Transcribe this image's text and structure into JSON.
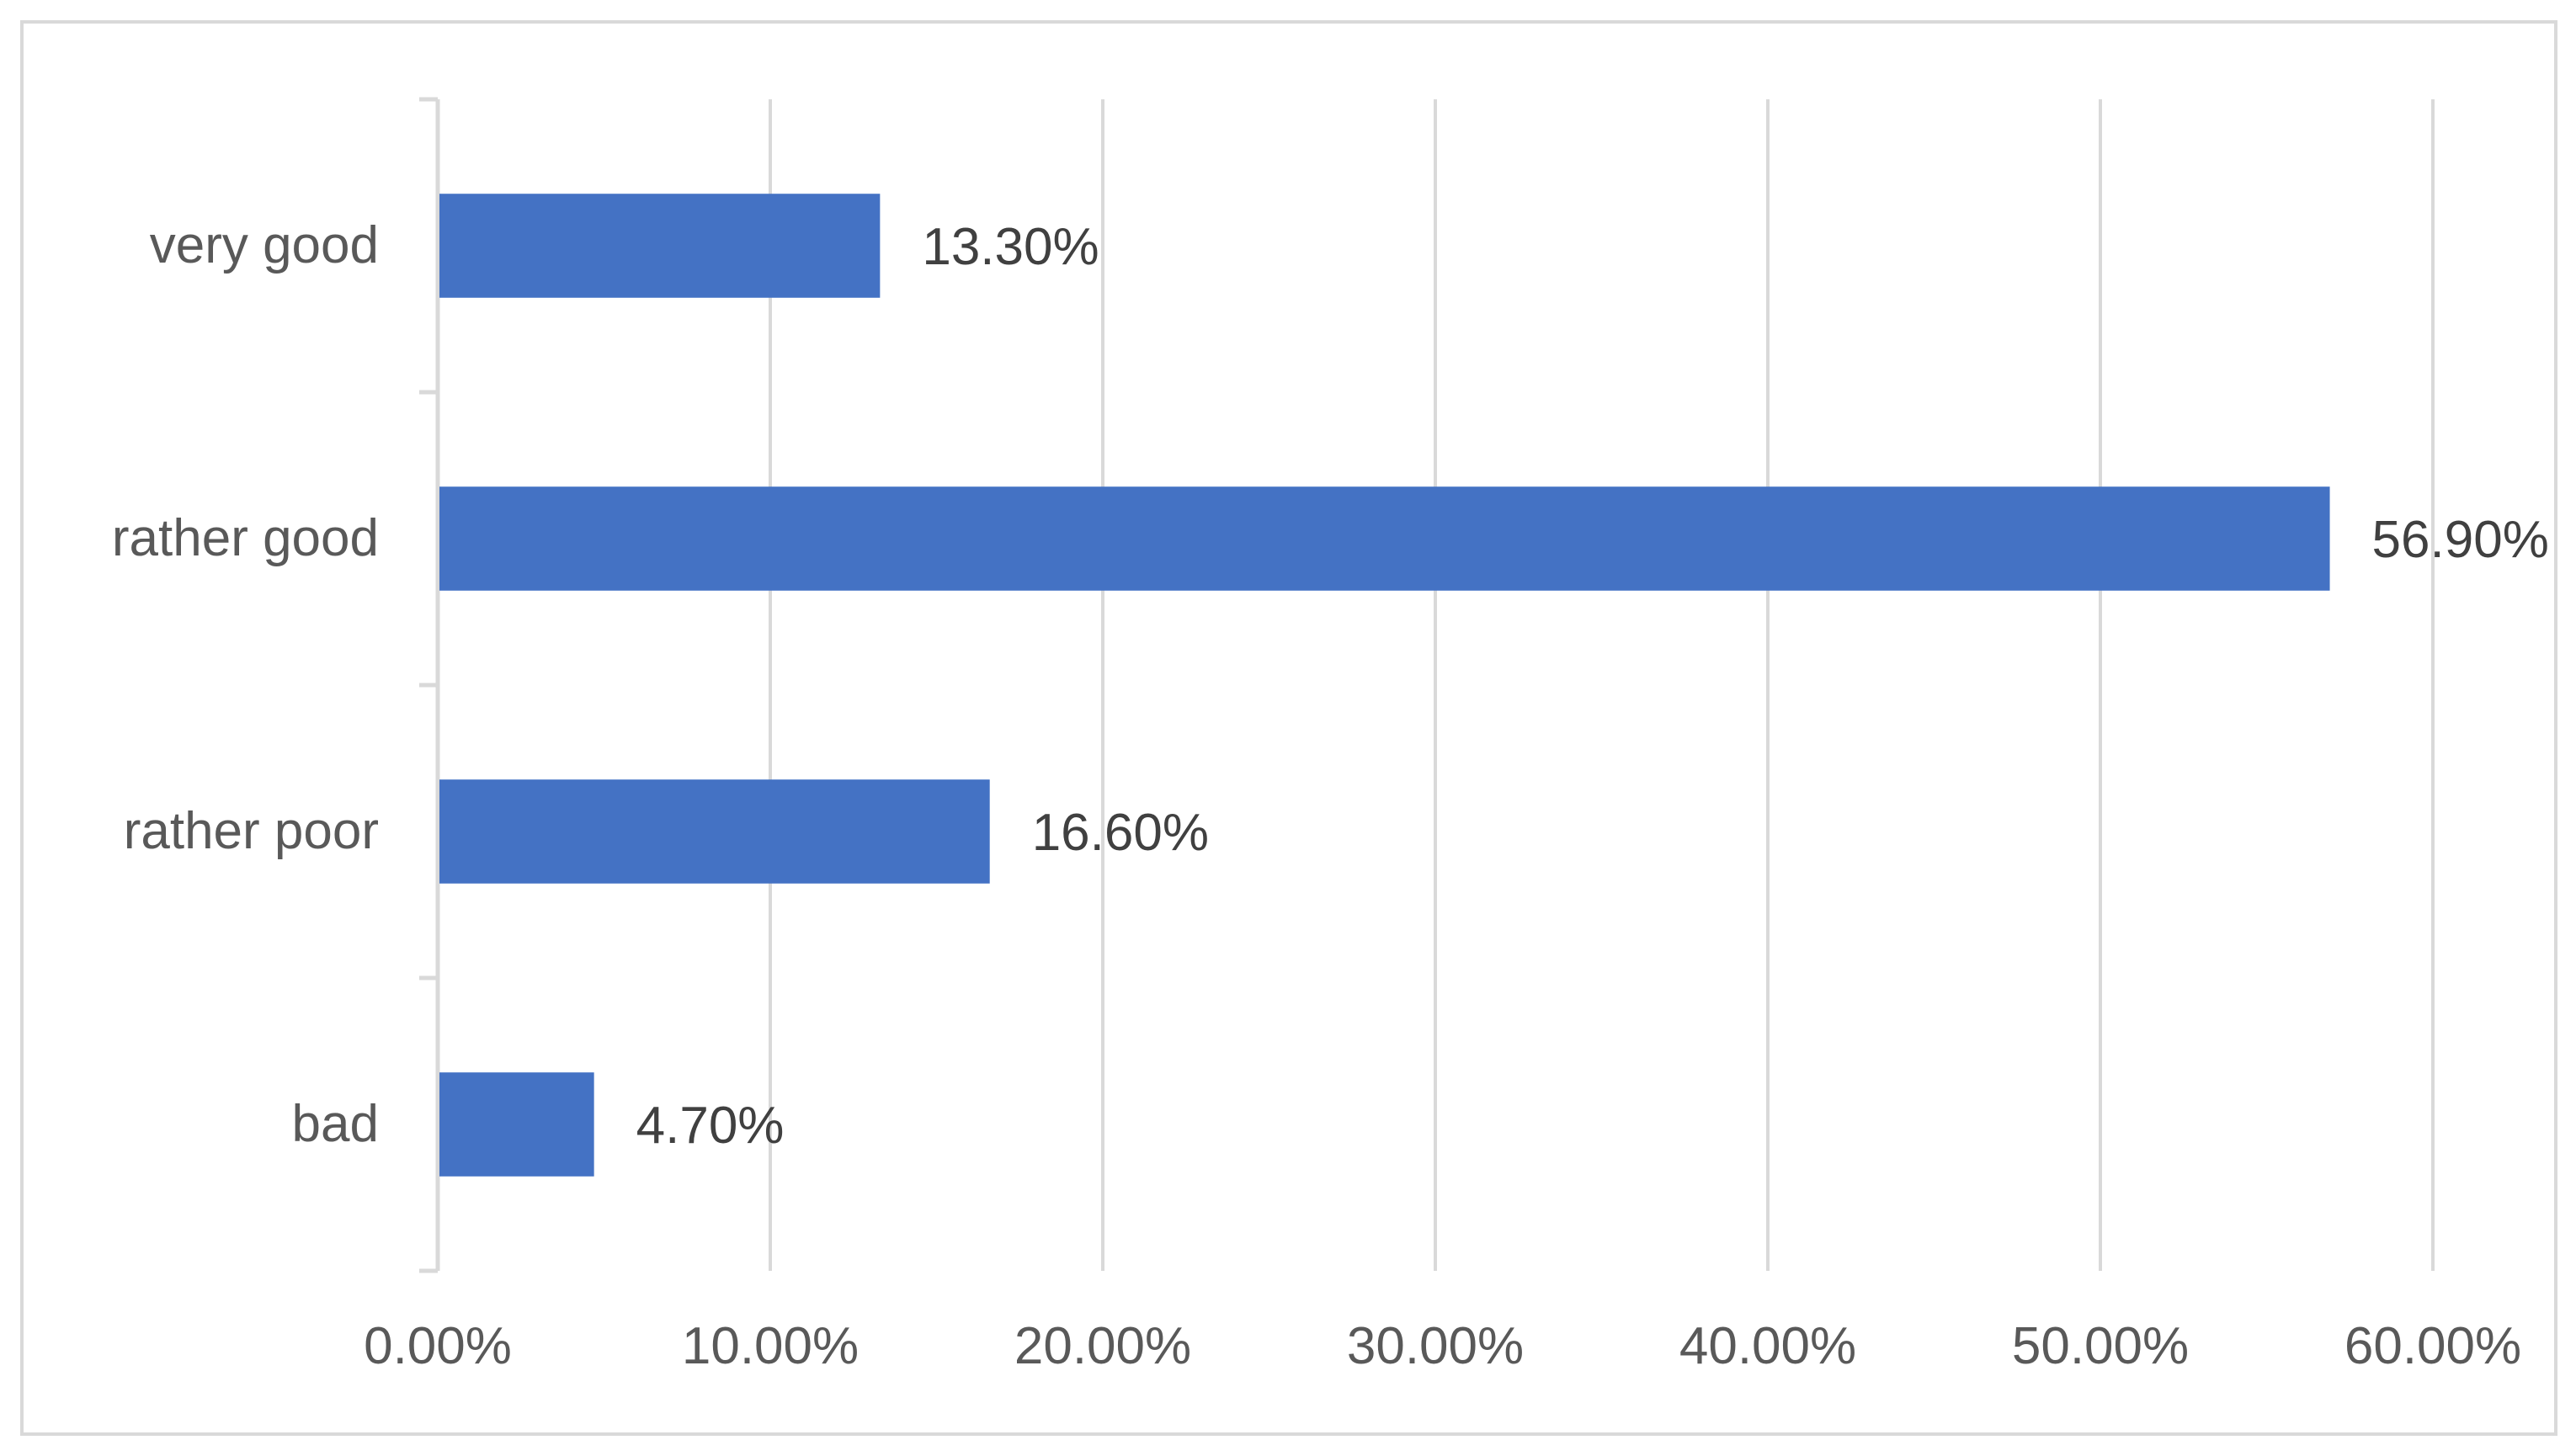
{
  "chart_data": {
    "type": "bar",
    "orientation": "horizontal",
    "categories": [
      "very good",
      "rather good",
      "rather poor",
      "bad"
    ],
    "values": [
      13.3,
      56.9,
      16.6,
      4.7
    ],
    "data_labels": [
      "13.30%",
      "56.90%",
      "16.60%",
      "4.70%"
    ],
    "xlim": [
      0,
      60
    ],
    "x_ticks": [
      0,
      10,
      20,
      30,
      40,
      50,
      60
    ],
    "x_tick_labels": [
      "0.00%",
      "10.00%",
      "20.00%",
      "30.00%",
      "40.00%",
      "50.00%",
      "60.00%"
    ],
    "title": "",
    "xlabel": "",
    "ylabel": "",
    "grid": "vertical",
    "legend": "none",
    "bar_color": "#4472C4",
    "grid_color": "#d9d9d9",
    "text_color": "#595959"
  }
}
